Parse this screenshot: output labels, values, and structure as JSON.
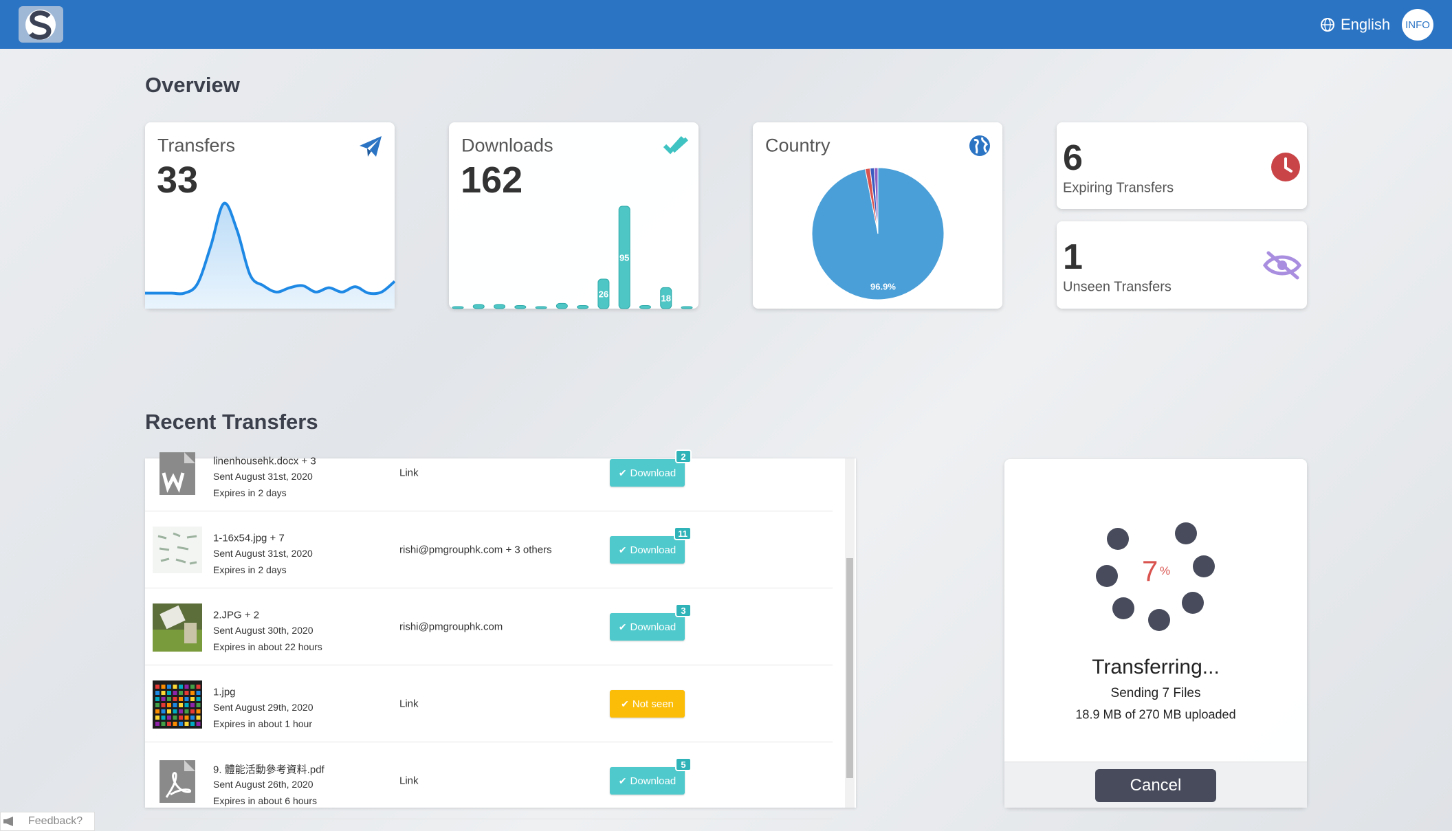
{
  "header": {
    "language": "English",
    "info": "INFO"
  },
  "overview": {
    "title": "Overview",
    "transfers": {
      "label": "Transfers",
      "value": 33,
      "trend": {
        "type": "line",
        "color": "#1e88e5",
        "values": [
          1,
          1,
          1,
          1,
          10,
          45,
          85,
          60,
          18,
          8,
          2,
          6,
          8,
          2,
          6,
          2,
          7,
          1,
          2,
          12
        ]
      }
    },
    "downloads": {
      "label": "Downloads",
      "value": 162,
      "bars": {
        "type": "bar",
        "color": "#4fc6c6",
        "values": [
          0,
          2,
          2,
          1,
          0,
          3,
          1,
          26,
          95,
          1,
          18,
          0
        ]
      }
    },
    "country": {
      "label": "Country",
      "pie": {
        "type": "pie",
        "values": [
          96.9,
          1.2,
          1.0,
          0.9
        ],
        "value_labels": [
          "96.9%",
          null,
          null,
          null
        ],
        "colors": [
          "#4a9fd8",
          "#d9534f",
          "#3a5bbf",
          "#8e5fc2"
        ]
      }
    },
    "expiring": {
      "value": 6,
      "label": "Expiring Transfers"
    },
    "unseen": {
      "value": 1,
      "label": "Unseen Transfers"
    }
  },
  "recent": {
    "title": "Recent Transfers",
    "rows": [
      {
        "thumb": "word",
        "name": "linenhousehk.docx + 3",
        "sent": "Sent August 31st, 2020",
        "expires": "Expires in 2 days",
        "recipient": "Link",
        "button": "Download",
        "button_color": "#4fc9cc",
        "badge": 2
      },
      {
        "thumb": "sheet",
        "name": "1-16x54.jpg + 7",
        "sent": "Sent August 31st, 2020",
        "expires": "Expires in 2 days",
        "recipient": "rishi@pmgrouphk.com + 3 others",
        "button": "Download",
        "button_color": "#4fc9cc",
        "badge": 11
      },
      {
        "thumb": "photo",
        "name": "2.JPG + 2",
        "sent": "Sent August 30th, 2020",
        "expires": "Expires in about 22 hours",
        "recipient": "rishi@pmgrouphk.com",
        "button": "Download",
        "button_color": "#4fc9cc",
        "badge": 3
      },
      {
        "thumb": "mosaic",
        "name": "1.jpg",
        "sent": "Sent August 29th, 2020",
        "expires": "Expires in about 1 hour",
        "recipient": "Link",
        "button": "Not seen",
        "button_color": "#fbbd08",
        "badge": null
      },
      {
        "thumb": "pdf",
        "name": "9. 體能活動參考資料.pdf",
        "sent": "Sent August 26th, 2020",
        "expires": "Expires in about 6 hours",
        "recipient": "Link",
        "button": "Download",
        "button_color": "#4fc9cc",
        "badge": 5
      }
    ]
  },
  "progress": {
    "percent": 7,
    "unit": "%",
    "status": "Transferring...",
    "detail": "Sending 7 Files",
    "uploaded": "18.9 MB of 270 MB uploaded",
    "cancel": "Cancel"
  },
  "feedback": "Feedback?"
}
